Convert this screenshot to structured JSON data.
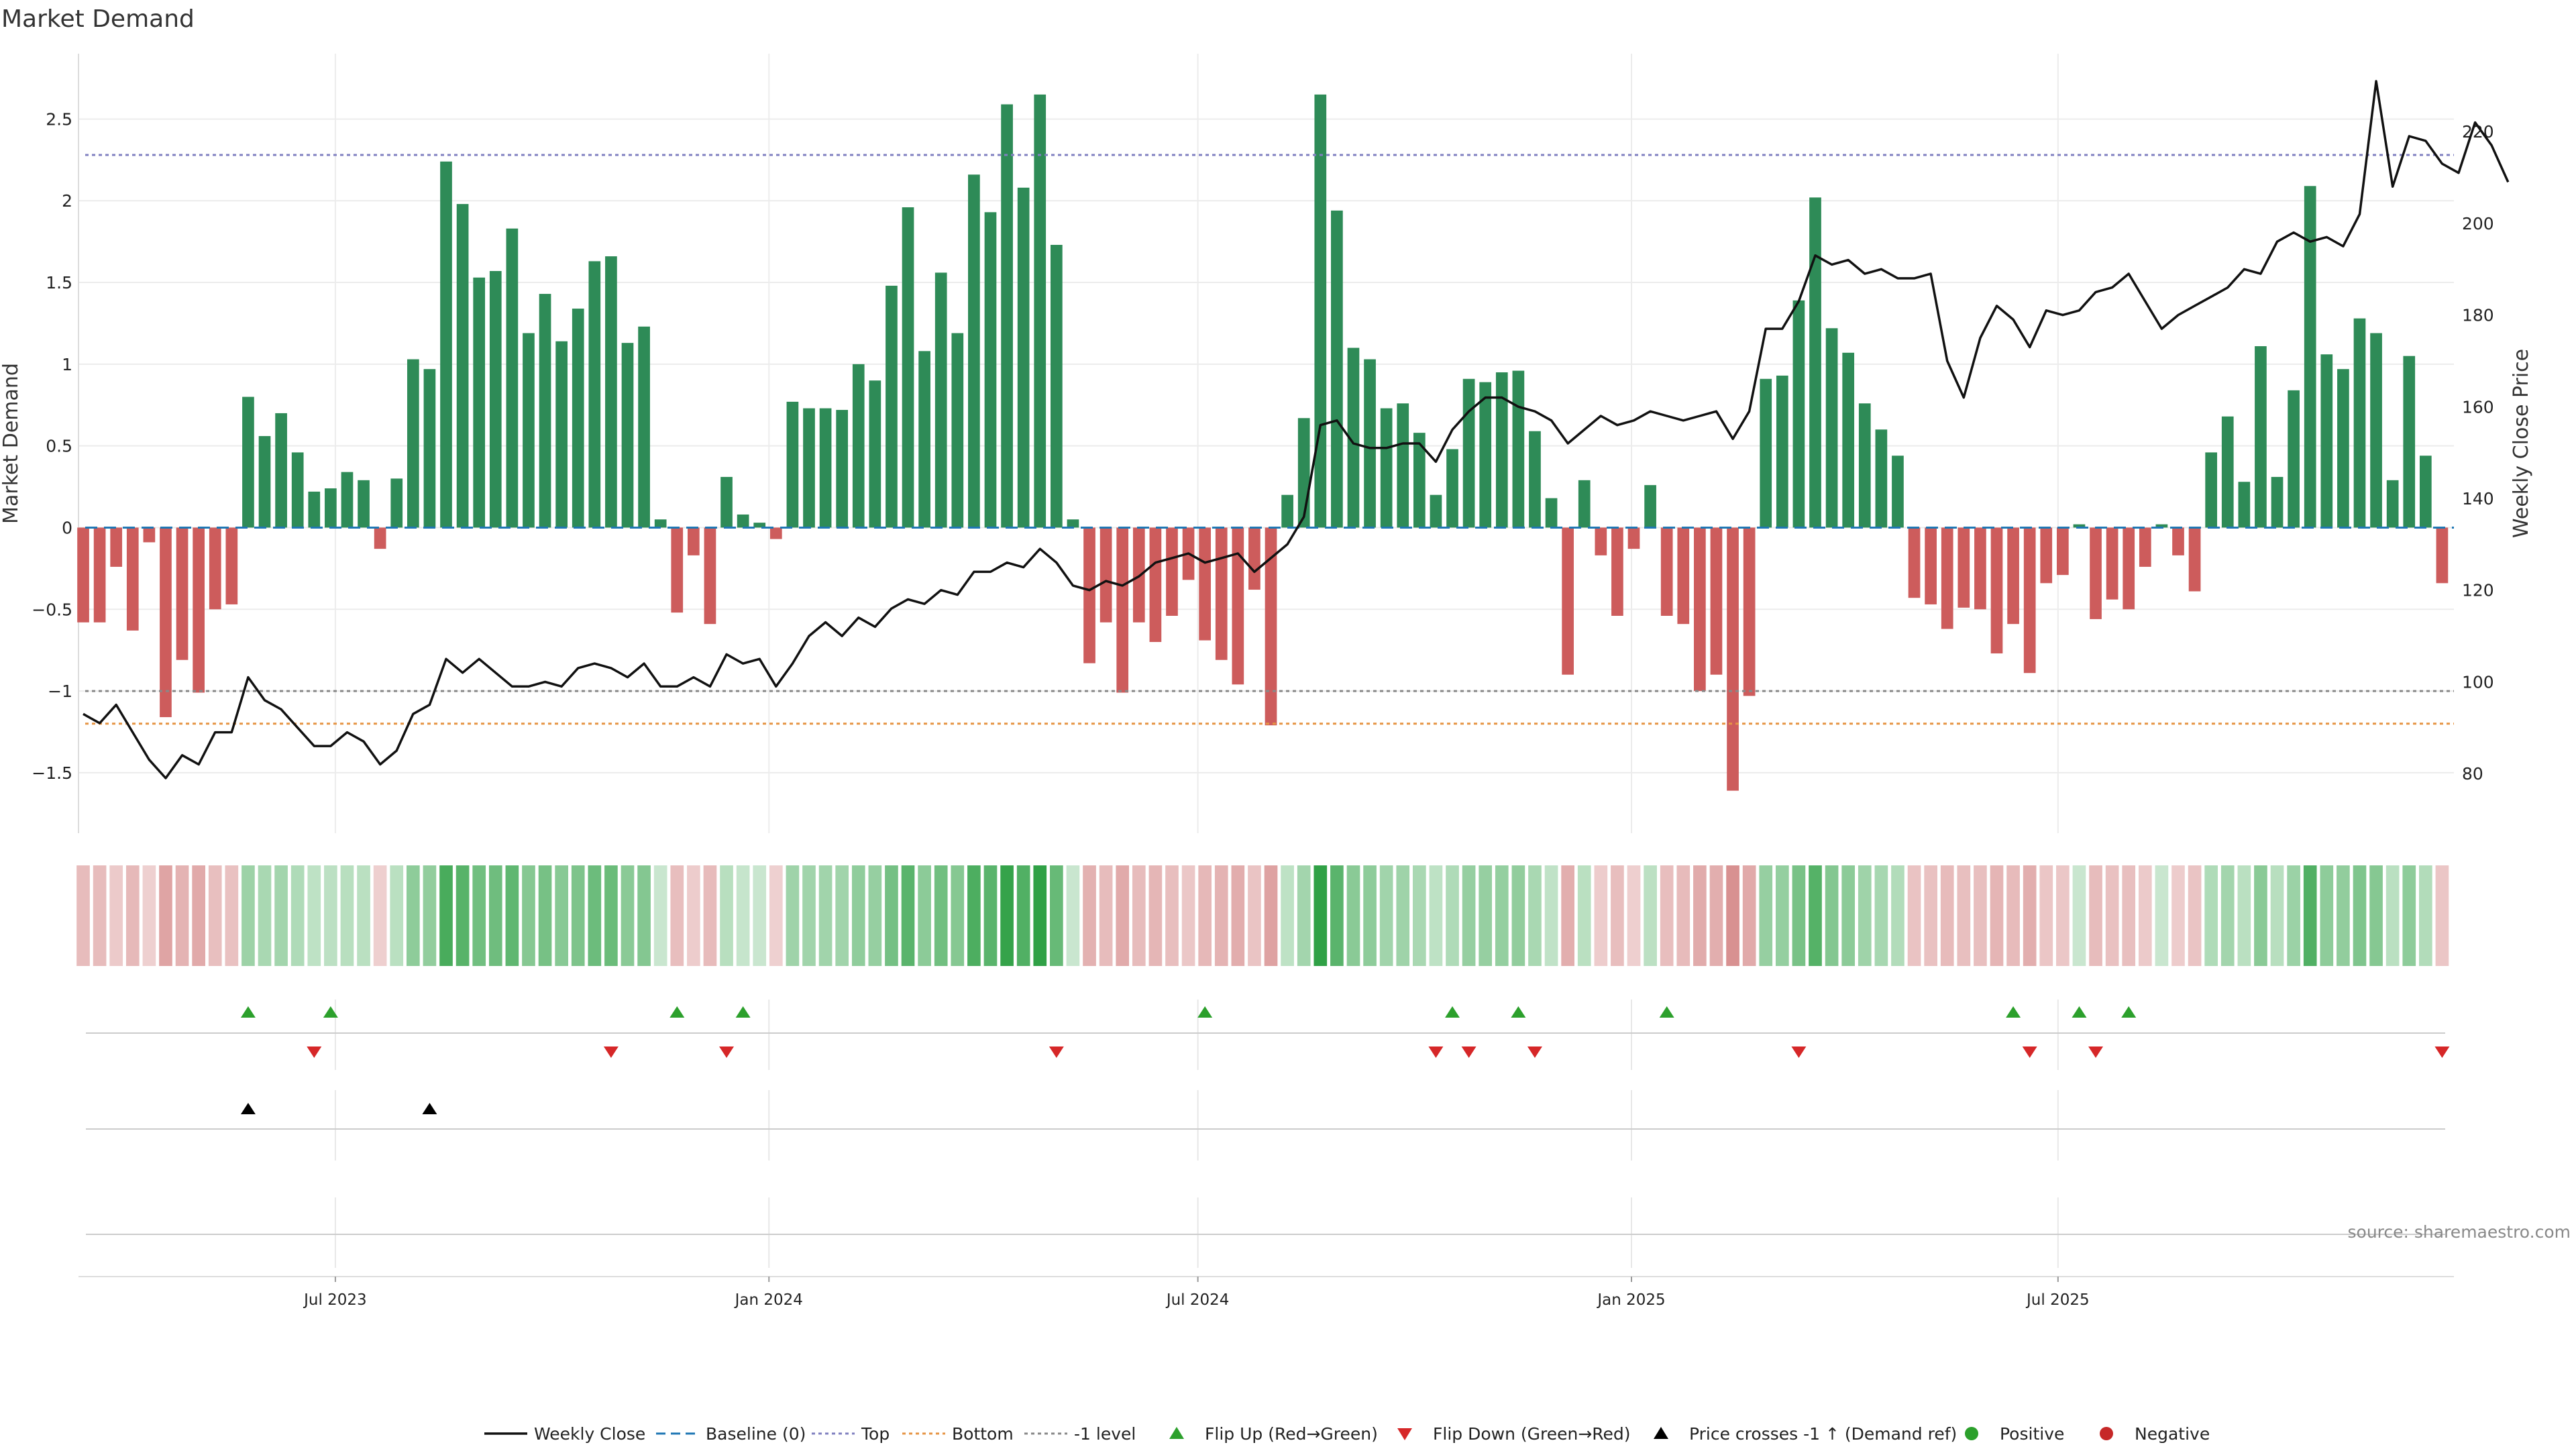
{
  "chart_data": {
    "type": "bar",
    "title": "Market Demand",
    "ylabel": "Market Demand",
    "y2label": "Weekly Close Price",
    "xlabel": "",
    "ylim": [
      -1.87,
      2.9
    ],
    "y2lim": [
      67,
      237
    ],
    "y_ticks": [
      -1.5,
      -1,
      -0.5,
      0,
      0.5,
      1,
      1.5,
      2,
      2.5
    ],
    "y_tick_labels": [
      "−1.5",
      "−1",
      "−0.5",
      "0",
      "0.5",
      "1",
      "1.5",
      "2",
      "2.5"
    ],
    "y2_ticks": [
      80,
      100,
      120,
      140,
      160,
      180,
      200,
      220
    ],
    "y2_tick_labels": [
      "80",
      "100",
      "120",
      "140",
      "160",
      "180",
      "200",
      "220"
    ],
    "x_start": "2023-03-14",
    "x_end": "2025-12-16",
    "date_ticks": [
      {
        "date": "2023-07-01",
        "label": "Jul 2023"
      },
      {
        "date": "2024-01-01",
        "label": "Jan 2024"
      },
      {
        "date": "2024-07-01",
        "label": "Jul 2024"
      },
      {
        "date": "2025-01-01",
        "label": "Jan 2025"
      },
      {
        "date": "2025-07-01",
        "label": "Jul 2025"
      }
    ],
    "reference_lines": {
      "top": 2.28,
      "bottom": -1.2,
      "minus_one": -1.0
    },
    "colors": {
      "positive": "#2e8b57",
      "negative": "#cd5c5c",
      "price": "#111111",
      "baseline": "#1f77b4",
      "top": "#8080c0",
      "bottom": "#e69545",
      "minus_one": "#888888",
      "flip_up": "#2ca02c",
      "flip_down": "#d62728",
      "cross": "#000000",
      "positive_dot": "#2ca02c",
      "negative_dot": "#c62828"
    },
    "series": [
      {
        "name": "Market Demand",
        "start": "2023-03-16",
        "step_days": 7,
        "values": [
          -0.58,
          -0.58,
          -0.24,
          -0.63,
          -0.09,
          -1.16,
          -0.81,
          -1.01,
          -0.5,
          -0.47,
          0.8,
          0.56,
          0.7,
          0.46,
          0.22,
          0.24,
          0.34,
          0.29,
          -0.13,
          0.3,
          1.03,
          0.97,
          2.24,
          1.98,
          1.53,
          1.57,
          1.83,
          1.19,
          1.43,
          1.14,
          1.34,
          1.63,
          1.66,
          1.13,
          1.23,
          0.05,
          -0.52,
          -0.17,
          -0.59,
          0.31,
          0.08,
          0.03,
          -0.07,
          0.77,
          0.73,
          0.73,
          0.72,
          1.0,
          0.9,
          1.48,
          1.96,
          1.08,
          1.56,
          1.19,
          2.16,
          1.93,
          2.59,
          2.08,
          2.65,
          1.73,
          0.05,
          -0.83,
          -0.58,
          -1.01,
          -0.58,
          -0.7,
          -0.54,
          -0.32,
          -0.69,
          -0.81,
          -0.96,
          -0.38,
          -1.21,
          0.2,
          0.67,
          2.65,
          1.94,
          1.1,
          1.03,
          0.73,
          0.76,
          0.58,
          0.2,
          0.48,
          0.91,
          0.89,
          0.95,
          0.96,
          0.59,
          0.18,
          -0.9,
          0.29,
          -0.17,
          -0.54,
          -0.13,
          0.26,
          -0.54,
          -0.59,
          -1.0,
          -0.9,
          -1.61,
          -1.03,
          0.91,
          0.93,
          1.39,
          2.02,
          1.22,
          1.07,
          0.76,
          0.6,
          0.44,
          -0.43,
          -0.47,
          -0.62,
          -0.49,
          -0.5,
          -0.77,
          -0.59,
          -0.89,
          -0.34,
          -0.29,
          0.02,
          -0.56,
          -0.44,
          -0.5,
          -0.24,
          0.02,
          -0.17,
          -0.39,
          0.46,
          0.68,
          0.28,
          1.11,
          0.31,
          0.84,
          2.09,
          1.06,
          0.97,
          1.28,
          1.19,
          0.29,
          1.05,
          0.44,
          -0.34
        ]
      },
      {
        "name": "Weekly Close",
        "start": "2023-03-16",
        "step_days": 7,
        "values": [
          93,
          91,
          95,
          89,
          83,
          79,
          84,
          82,
          89,
          89,
          101,
          96,
          94,
          90,
          86,
          86,
          89,
          87,
          82,
          85,
          93,
          95,
          105,
          102,
          105,
          102,
          99,
          99,
          100,
          99,
          103,
          104,
          103,
          101,
          104,
          99,
          99,
          101,
          99,
          106,
          104,
          105,
          99,
          104,
          110,
          113,
          110,
          114,
          112,
          116,
          118,
          117,
          120,
          119,
          124,
          124,
          126,
          125,
          129,
          126,
          121,
          120,
          122,
          121,
          123,
          126,
          127,
          128,
          126,
          127,
          128,
          124,
          127,
          130,
          136,
          156,
          157,
          152,
          151,
          151,
          152,
          152,
          148,
          155,
          159,
          162,
          162,
          160,
          159,
          157,
          152,
          155,
          158,
          156,
          157,
          159,
          158,
          157,
          158,
          159,
          153,
          159,
          177,
          177,
          183,
          193,
          191,
          192,
          189,
          190,
          188,
          188,
          189,
          170,
          162,
          175,
          182,
          179,
          173,
          181,
          180,
          181,
          185,
          186,
          189,
          183,
          177,
          180,
          182,
          184,
          186,
          190,
          189,
          196,
          198,
          196,
          197,
          195,
          202,
          231,
          208,
          219,
          218,
          213,
          211,
          222,
          217,
          209
        ]
      }
    ],
    "flip_up_dates": [
      "2023-05-25",
      "2023-06-29",
      "2023-11-23",
      "2023-12-21",
      "2024-07-04",
      "2024-10-17",
      "2024-11-14",
      "2025-01-16",
      "2025-06-12",
      "2025-07-10",
      "2025-07-31"
    ],
    "flip_down_dates": [
      "2023-06-22",
      "2023-10-26",
      "2023-12-14",
      "2024-05-02",
      "2024-10-10",
      "2024-10-24",
      "2024-11-21",
      "2025-03-13",
      "2025-06-19",
      "2025-07-17",
      "2025-12-11"
    ],
    "cross_up_dates": [
      "2023-05-25",
      "2023-08-10"
    ],
    "legend": [
      {
        "label": "Weekly Close",
        "kind": "line-solid",
        "color": "#111111"
      },
      {
        "label": "Baseline (0)",
        "kind": "line-dashed",
        "color": "#1f77b4"
      },
      {
        "label": "Top",
        "kind": "line-dotted",
        "color": "#8080c0"
      },
      {
        "label": "Bottom",
        "kind": "line-dotted",
        "color": "#e69545"
      },
      {
        "label": "-1 level",
        "kind": "line-dotted",
        "color": "#888888"
      },
      {
        "label": "Flip Up (Red→Green)",
        "kind": "tri-up",
        "color": "#2ca02c"
      },
      {
        "label": "Flip Down (Green→Red)",
        "kind": "tri-down",
        "color": "#d62728"
      },
      {
        "label": "Price crosses -1 ↑ (Demand ref)",
        "kind": "tri-up",
        "color": "#000000"
      },
      {
        "label": "Positive",
        "kind": "dot",
        "color": "#2ca02c"
      },
      {
        "label": "Negative",
        "kind": "dot",
        "color": "#c62828"
      }
    ],
    "source": "source: sharemaestro.com"
  }
}
